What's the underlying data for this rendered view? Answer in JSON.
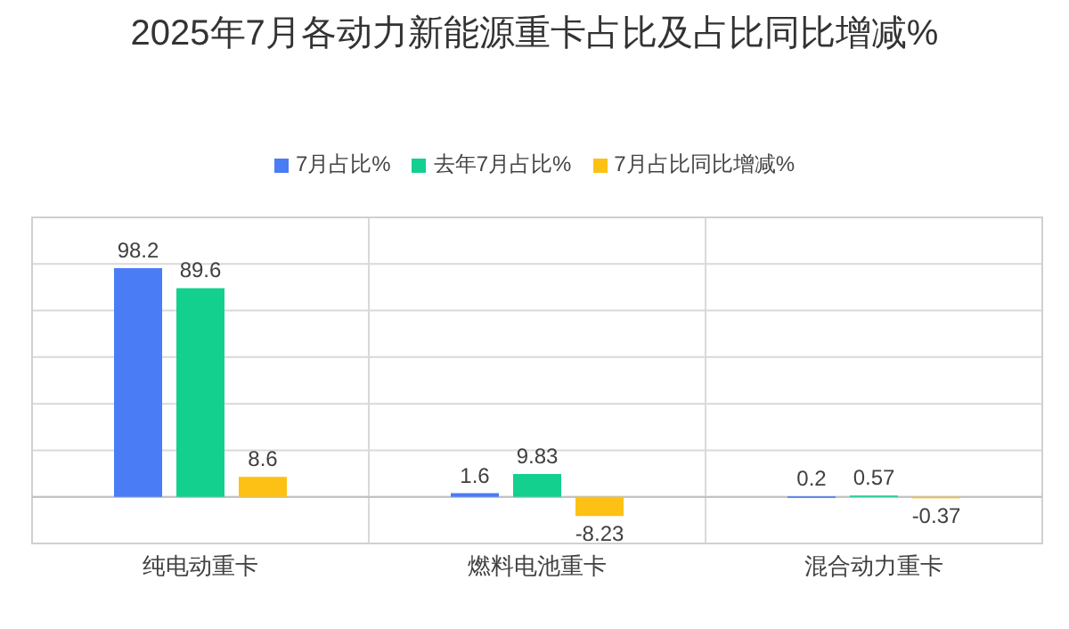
{
  "chart_data": {
    "type": "bar",
    "title": "2025年7月各动力新能源重卡占比及占比同比增减%",
    "categories": [
      "纯电动重卡",
      "燃料电池重卡",
      "混合动力重卡"
    ],
    "series": [
      {
        "name": "7月占比%",
        "color": "#4a7cf6",
        "values": [
          98.2,
          1.6,
          0.2
        ]
      },
      {
        "name": "去年7月占比%",
        "color": "#14d08f",
        "values": [
          89.6,
          9.83,
          0.57
        ]
      },
      {
        "name": "7月占比同比增减%",
        "color": "#fdc116",
        "values": [
          8.6,
          -8.23,
          -0.37
        ]
      }
    ],
    "ylim": [
      -20,
      120
    ],
    "yticks": [
      {
        "value": -20,
        "label": null
      },
      {
        "value": 0,
        "label": null
      },
      {
        "value": 20,
        "label": null
      },
      {
        "value": 40,
        "label": null
      },
      {
        "value": 60,
        "label": null
      },
      {
        "value": 80,
        "label": null
      },
      {
        "value": 100,
        "label": null
      },
      {
        "value": 120,
        "label": null
      }
    ],
    "tick_labels": "x",
    "grid": true,
    "legend": "top",
    "data_labels": true
  }
}
